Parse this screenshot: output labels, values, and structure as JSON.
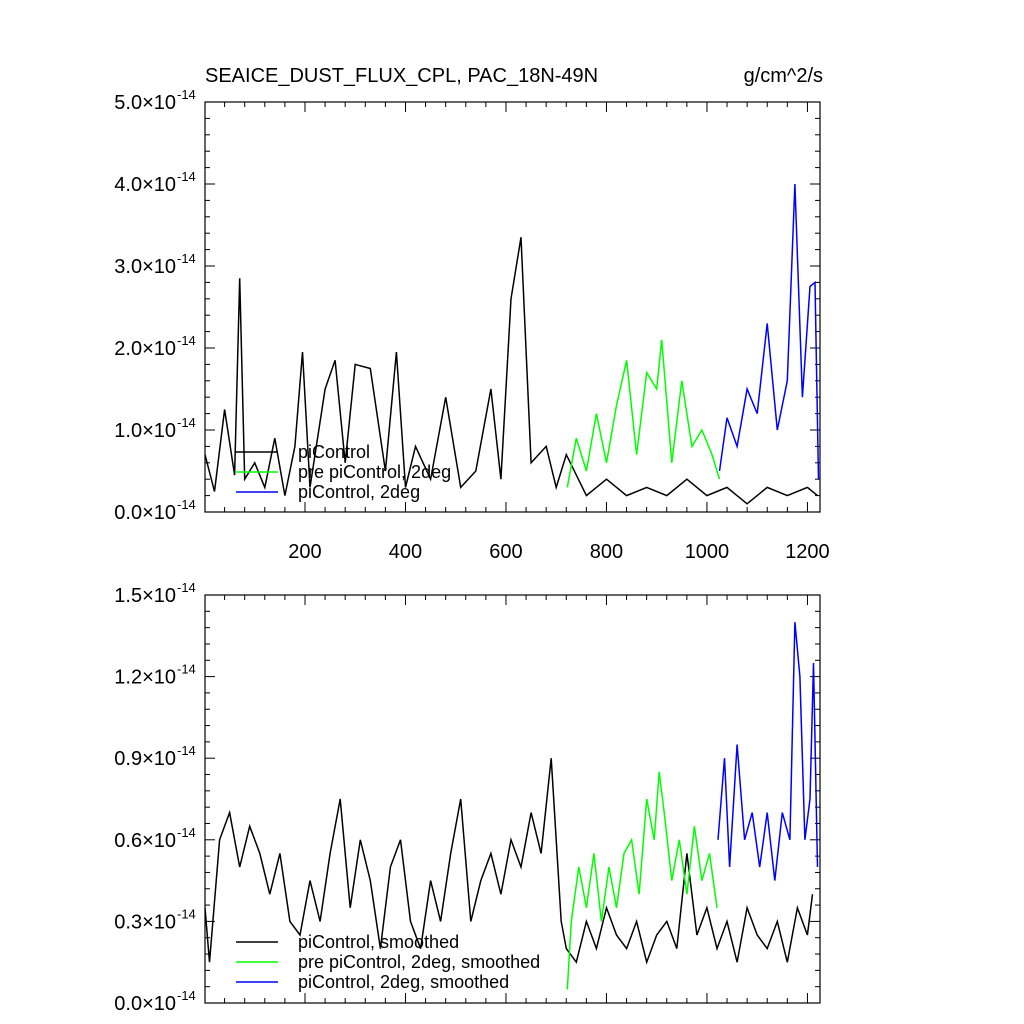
{
  "title_left": "SEAICE_DUST_FLUX_CPL, PAC_18N-49N",
  "title_right": "g/cm^2/s",
  "colors": {
    "piControl": "#000000",
    "pre_piControl_2deg": "#00ff00",
    "piControl_2deg": "#0000ff"
  },
  "chart_data": [
    {
      "type": "line",
      "panel": "top",
      "xlim": [
        1,
        1225
      ],
      "ylim": [
        0,
        5e-14
      ],
      "xticks": [
        200,
        400,
        600,
        800,
        1000,
        1200
      ],
      "yticks": [
        {
          "mantissa": "0.0",
          "exp": "-14"
        },
        {
          "mantissa": "1.0",
          "exp": "-14"
        },
        {
          "mantissa": "2.0",
          "exp": "-14"
        },
        {
          "mantissa": "3.0",
          "exp": "-14"
        },
        {
          "mantissa": "4.0",
          "exp": "-14"
        },
        {
          "mantissa": "5.0",
          "exp": "-14"
        }
      ],
      "grid": false,
      "legend_position": "bottom-left",
      "series": [
        {
          "name": "piControl",
          "color": "#000000",
          "x": [
            1,
            20,
            40,
            60,
            70,
            80,
            100,
            120,
            140,
            160,
            180,
            195,
            210,
            240,
            260,
            280,
            300,
            330,
            360,
            382,
            400,
            420,
            450,
            480,
            510,
            540,
            570,
            590,
            610,
            630,
            650,
            680,
            700,
            720,
            760,
            800,
            840,
            880,
            920,
            960,
            1000,
            1040,
            1080,
            1120,
            1160,
            1200,
            1220
          ],
          "values": [
            7e-15,
            2.5e-15,
            1.25e-14,
            4.5e-15,
            2.85e-14,
            4e-15,
            6e-15,
            3e-15,
            9e-15,
            2e-15,
            8e-15,
            1.95e-14,
            3e-15,
            1.5e-14,
            1.85e-14,
            6e-15,
            1.8e-14,
            1.75e-14,
            5e-15,
            1.95e-14,
            3e-15,
            8e-15,
            4e-15,
            1.4e-14,
            3e-15,
            5e-15,
            1.5e-14,
            4e-15,
            2.6e-14,
            3.35e-14,
            6e-15,
            8e-15,
            3e-15,
            7e-15,
            2e-15,
            4e-15,
            2e-15,
            3e-15,
            2e-15,
            4e-15,
            2e-15,
            3e-15,
            1e-15,
            3e-15,
            2e-15,
            3e-15,
            2e-15
          ]
        },
        {
          "name": "pre piControl, 2deg",
          "color": "#00ff00",
          "x": [
            722,
            740,
            760,
            780,
            800,
            820,
            840,
            860,
            880,
            900,
            910,
            930,
            950,
            970,
            990,
            1010,
            1025
          ],
          "values": [
            3e-15,
            9e-15,
            5e-15,
            1.2e-14,
            6e-15,
            1.3e-14,
            1.85e-14,
            7e-15,
            1.7e-14,
            1.5e-14,
            2.1e-14,
            6e-15,
            1.6e-14,
            8e-15,
            1e-14,
            7e-15,
            4e-15
          ]
        },
        {
          "name": "piControl, 2deg",
          "color": "#0000ff",
          "x": [
            1025,
            1040,
            1060,
            1080,
            1100,
            1120,
            1140,
            1160,
            1175,
            1190,
            1205,
            1215,
            1222
          ],
          "values": [
            5e-15,
            1.15e-14,
            8e-15,
            1.5e-14,
            1.2e-14,
            2.3e-14,
            1e-14,
            1.6e-14,
            4e-14,
            1.4e-14,
            2.75e-14,
            2.8e-14,
            4e-15
          ]
        }
      ]
    },
    {
      "type": "line",
      "panel": "bottom",
      "xlim": [
        1,
        1225
      ],
      "ylim": [
        0,
        1.5e-14
      ],
      "xticks": [
        200,
        400,
        600,
        800,
        1000,
        1200
      ],
      "yticks": [
        {
          "mantissa": "0.0",
          "exp": "-14"
        },
        {
          "mantissa": "0.3",
          "exp": "-14"
        },
        {
          "mantissa": "0.6",
          "exp": "-14"
        },
        {
          "mantissa": "0.9",
          "exp": "-14"
        },
        {
          "mantissa": "1.2",
          "exp": "-14"
        },
        {
          "mantissa": "1.5",
          "exp": "-14"
        }
      ],
      "grid": false,
      "legend_position": "bottom-left",
      "series": [
        {
          "name": "piControl, smoothed",
          "color": "#000000",
          "x": [
            1,
            10,
            30,
            50,
            70,
            90,
            110,
            130,
            150,
            170,
            190,
            210,
            230,
            250,
            270,
            290,
            310,
            330,
            350,
            370,
            390,
            410,
            430,
            450,
            470,
            490,
            510,
            530,
            550,
            570,
            590,
            610,
            630,
            650,
            670,
            690,
            710,
            720,
            740,
            760,
            780,
            800,
            820,
            840,
            860,
            880,
            900,
            920,
            940,
            960,
            980,
            1000,
            1020,
            1040,
            1060,
            1080,
            1100,
            1120,
            1140,
            1160,
            1180,
            1200,
            1210
          ],
          "values": [
            3.5e-15,
            1.5e-15,
            6e-15,
            7e-15,
            5e-15,
            6.5e-15,
            5.5e-15,
            4e-15,
            5.5e-15,
            3e-15,
            2.5e-15,
            4.5e-15,
            3e-15,
            5.5e-15,
            7.5e-15,
            3.5e-15,
            6e-15,
            4.5e-15,
            2e-15,
            5e-15,
            6e-15,
            3e-15,
            2e-15,
            4.5e-15,
            3e-15,
            5.5e-15,
            7.5e-15,
            3e-15,
            4.5e-15,
            5.5e-15,
            4e-15,
            6e-15,
            5e-15,
            7e-15,
            5.5e-15,
            9e-15,
            3e-15,
            2e-15,
            1.5e-15,
            3e-15,
            2e-15,
            3.5e-15,
            2.5e-15,
            2e-15,
            3e-15,
            1.5e-15,
            2.5e-15,
            3e-15,
            2e-15,
            5.5e-15,
            2.5e-15,
            3.5e-15,
            2e-15,
            3e-15,
            1.5e-15,
            3.5e-15,
            2.5e-15,
            2e-15,
            3e-15,
            1.5e-15,
            3.5e-15,
            2.5e-15,
            4e-15
          ]
        },
        {
          "name": "pre piControl, 2deg, smoothed",
          "color": "#00ff00",
          "x": [
            722,
            730,
            745,
            760,
            775,
            790,
            805,
            820,
            835,
            850,
            865,
            880,
            895,
            905,
            915,
            930,
            945,
            960,
            975,
            990,
            1005,
            1020
          ],
          "values": [
            5e-16,
            3e-15,
            5e-15,
            3.5e-15,
            5.5e-15,
            3e-15,
            5e-15,
            3.5e-15,
            5.5e-15,
            6e-15,
            4e-15,
            7.5e-15,
            6e-15,
            8.5e-15,
            7e-15,
            4.5e-15,
            6e-15,
            4e-15,
            6.5e-15,
            4.5e-15,
            5.5e-15,
            3.5e-15
          ]
        },
        {
          "name": "piControl, 2deg, smoothed",
          "color": "#0000ff",
          "x": [
            1022,
            1035,
            1045,
            1060,
            1075,
            1090,
            1105,
            1120,
            1135,
            1150,
            1165,
            1175,
            1185,
            1195,
            1205,
            1212,
            1220
          ],
          "values": [
            6e-15,
            9e-15,
            5e-15,
            9.5e-15,
            6e-15,
            7e-15,
            5e-15,
            7e-15,
            4.5e-15,
            7e-15,
            6e-15,
            1.4e-14,
            1.2e-14,
            6e-15,
            7.5e-15,
            1.25e-14,
            5e-15
          ]
        }
      ]
    }
  ]
}
